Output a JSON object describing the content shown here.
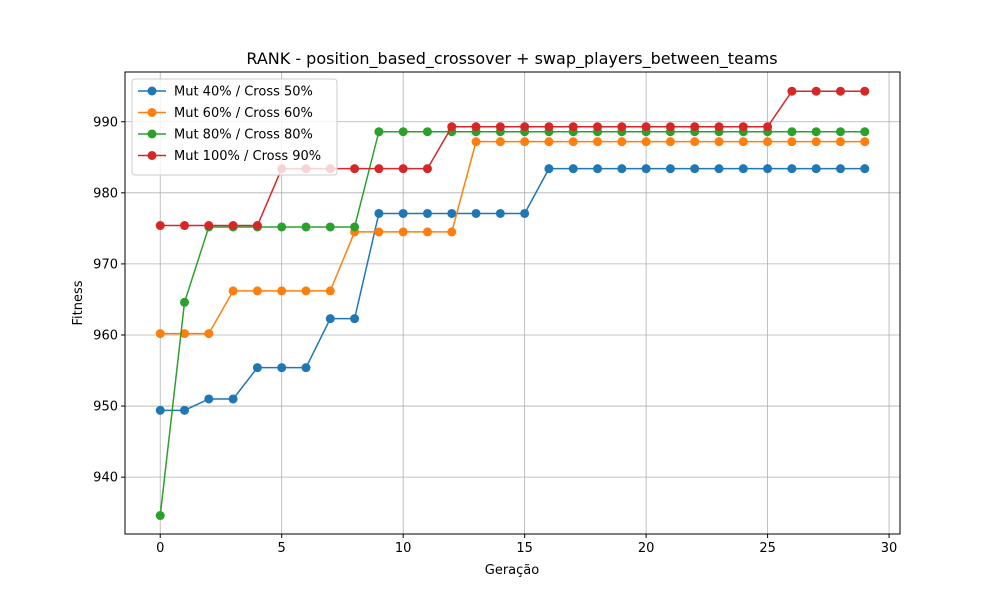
{
  "chart_data": {
    "type": "line",
    "title": "RANK - position_based_crossover + swap_players_between_teams",
    "xlabel": "Geração",
    "ylabel": "Fitness",
    "xlim": [
      -1.45,
      30.45
    ],
    "ylim": [
      932.0,
      997.0
    ],
    "xticks": [
      0,
      5,
      10,
      15,
      20,
      25,
      30
    ],
    "yticks": [
      940,
      950,
      960,
      970,
      980,
      990
    ],
    "grid": true,
    "legend_position": "top-left",
    "x": [
      0,
      1,
      2,
      3,
      4,
      5,
      6,
      7,
      8,
      9,
      10,
      11,
      12,
      13,
      14,
      15,
      16,
      17,
      18,
      19,
      20,
      21,
      22,
      23,
      24,
      25,
      26,
      27,
      28,
      29
    ],
    "series": [
      {
        "name": "Mut 40% / Cross 50%",
        "color": "#1f77b4",
        "values": [
          949.4,
          949.4,
          951.0,
          951.0,
          955.4,
          955.4,
          955.4,
          962.3,
          962.3,
          977.1,
          977.1,
          977.1,
          977.1,
          977.1,
          977.1,
          977.1,
          983.4,
          983.4,
          983.4,
          983.4,
          983.4,
          983.4,
          983.4,
          983.4,
          983.4,
          983.4,
          983.4,
          983.4,
          983.4,
          983.4
        ]
      },
      {
        "name": "Mut 60% / Cross 60%",
        "color": "#ff7f0e",
        "values": [
          960.2,
          960.2,
          960.2,
          966.2,
          966.2,
          966.2,
          966.2,
          966.2,
          974.5,
          974.5,
          974.5,
          974.5,
          974.5,
          987.2,
          987.2,
          987.2,
          987.2,
          987.2,
          987.2,
          987.2,
          987.2,
          987.2,
          987.2,
          987.2,
          987.2,
          987.2,
          987.2,
          987.2,
          987.2,
          987.2
        ]
      },
      {
        "name": "Mut 80% / Cross 80%",
        "color": "#2ca02c",
        "values": [
          934.6,
          964.6,
          975.2,
          975.2,
          975.2,
          975.2,
          975.2,
          975.2,
          975.2,
          988.6,
          988.6,
          988.6,
          988.6,
          988.6,
          988.6,
          988.6,
          988.6,
          988.6,
          988.6,
          988.6,
          988.6,
          988.6,
          988.6,
          988.6,
          988.6,
          988.6,
          988.6,
          988.6,
          988.6,
          988.6
        ]
      },
      {
        "name": "Mut 100% / Cross 90%",
        "color": "#d62728",
        "values": [
          975.4,
          975.4,
          975.4,
          975.4,
          975.4,
          983.4,
          983.4,
          983.4,
          983.4,
          983.4,
          983.4,
          983.4,
          989.3,
          989.3,
          989.3,
          989.3,
          989.3,
          989.3,
          989.3,
          989.3,
          989.3,
          989.3,
          989.3,
          989.3,
          989.3,
          989.3,
          994.3,
          994.3,
          994.3,
          994.3
        ]
      }
    ]
  }
}
